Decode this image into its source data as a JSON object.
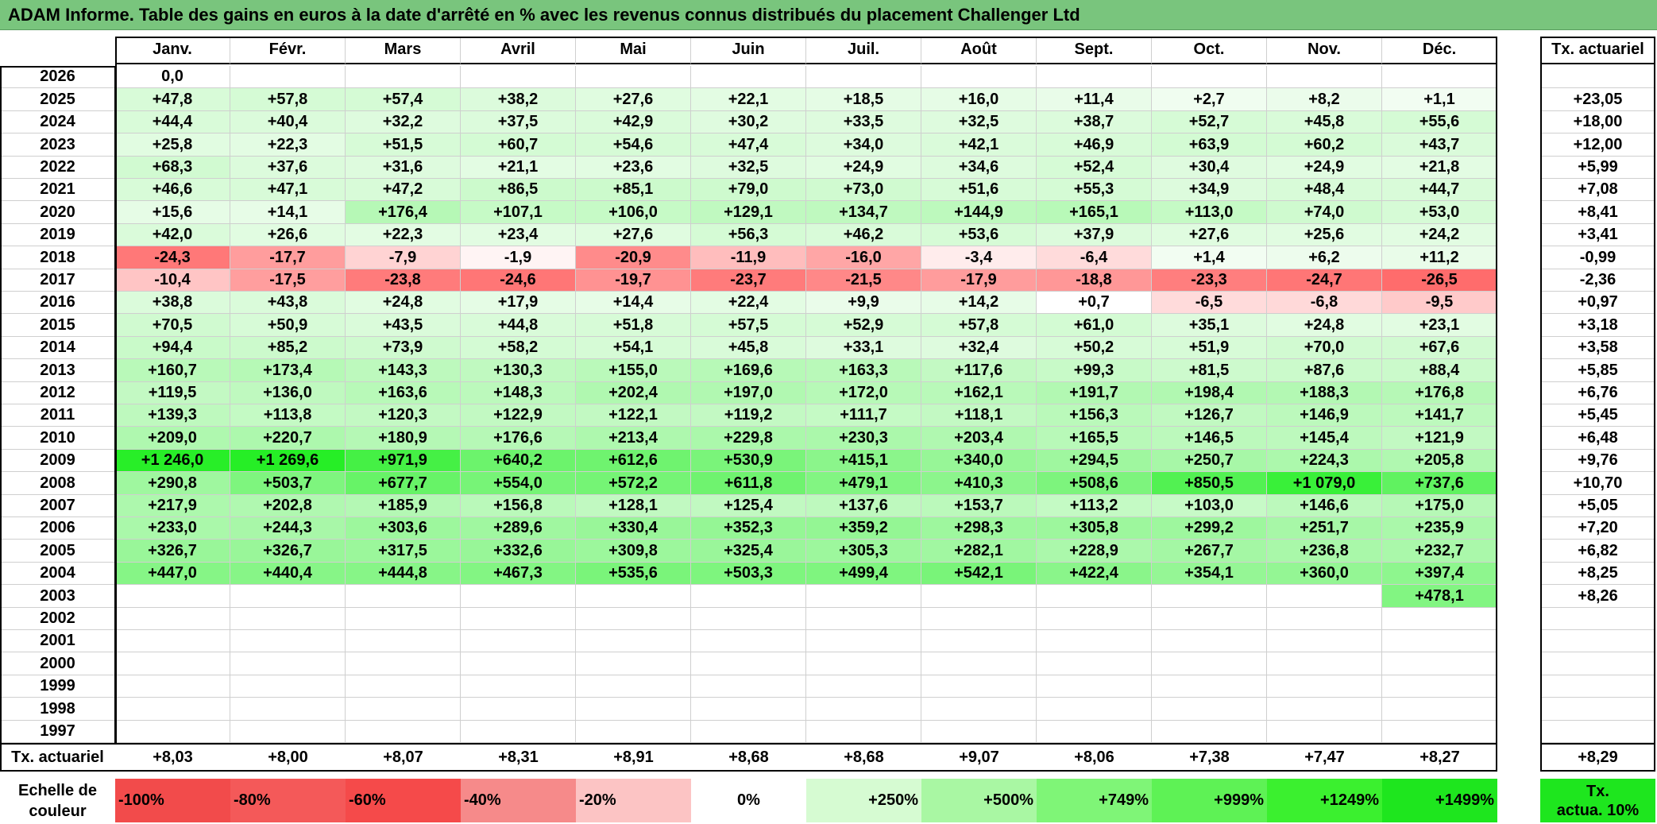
{
  "title": "ADAM Informe. Table des gains en euros à la date d'arrêté en % avec les revenus connus distribués du placement Challenger Ltd",
  "months": [
    "Janv.",
    "Févr.",
    "Mars",
    "Avril",
    "Mai",
    "Juin",
    "Juil.",
    "Août",
    "Sept.",
    "Oct.",
    "Nov.",
    "Déc."
  ],
  "rate_header": "Tx. actuariel",
  "rows": [
    {
      "year": "2026",
      "cells": [
        "0,0",
        "",
        "",
        "",
        "",
        "",
        "",
        "",
        "",
        "",
        "",
        ""
      ],
      "rate": ""
    },
    {
      "year": "2025",
      "cells": [
        "+47,8",
        "+57,8",
        "+57,4",
        "+38,2",
        "+27,6",
        "+22,1",
        "+18,5",
        "+16,0",
        "+11,4",
        "+2,7",
        "+8,2",
        "+1,1"
      ],
      "rate": "+23,05"
    },
    {
      "year": "2024",
      "cells": [
        "+44,4",
        "+40,4",
        "+32,2",
        "+37,5",
        "+42,9",
        "+30,2",
        "+33,5",
        "+32,5",
        "+38,7",
        "+52,7",
        "+45,8",
        "+55,6"
      ],
      "rate": "+18,00"
    },
    {
      "year": "2023",
      "cells": [
        "+25,8",
        "+22,3",
        "+51,5",
        "+60,7",
        "+54,6",
        "+47,4",
        "+34,0",
        "+42,1",
        "+46,9",
        "+63,9",
        "+60,2",
        "+43,7"
      ],
      "rate": "+12,00"
    },
    {
      "year": "2022",
      "cells": [
        "+68,3",
        "+37,6",
        "+31,6",
        "+21,1",
        "+23,6",
        "+32,5",
        "+24,9",
        "+34,6",
        "+52,4",
        "+30,4",
        "+24,9",
        "+21,8"
      ],
      "rate": "+5,99"
    },
    {
      "year": "2021",
      "cells": [
        "+46,6",
        "+47,1",
        "+47,2",
        "+86,5",
        "+85,1",
        "+79,0",
        "+73,0",
        "+51,6",
        "+55,3",
        "+34,9",
        "+48,4",
        "+44,7"
      ],
      "rate": "+7,08"
    },
    {
      "year": "2020",
      "cells": [
        "+15,6",
        "+14,1",
        "+176,4",
        "+107,1",
        "+106,0",
        "+129,1",
        "+134,7",
        "+144,9",
        "+165,1",
        "+113,0",
        "+74,0",
        "+53,0"
      ],
      "rate": "+8,41"
    },
    {
      "year": "2019",
      "cells": [
        "+42,0",
        "+26,6",
        "+22,3",
        "+23,4",
        "+27,6",
        "+56,3",
        "+46,2",
        "+53,6",
        "+37,9",
        "+27,6",
        "+25,6",
        "+24,2"
      ],
      "rate": "+3,41"
    },
    {
      "year": "2018",
      "cells": [
        "-24,3",
        "-17,7",
        "-7,9",
        "-1,9",
        "-20,9",
        "-11,9",
        "-16,0",
        "-3,4",
        "-6,4",
        "+1,4",
        "+6,2",
        "+11,2"
      ],
      "rate": "-0,99"
    },
    {
      "year": "2017",
      "cells": [
        "-10,4",
        "-17,5",
        "-23,8",
        "-24,6",
        "-19,7",
        "-23,7",
        "-21,5",
        "-17,9",
        "-18,8",
        "-23,3",
        "-24,7",
        "-26,5"
      ],
      "rate": "-2,36"
    },
    {
      "year": "2016",
      "cells": [
        "+38,8",
        "+43,8",
        "+24,8",
        "+17,9",
        "+14,4",
        "+22,4",
        "+9,9",
        "+14,2",
        "+0,7",
        "-6,5",
        "-6,8",
        "-9,5"
      ],
      "rate": "+0,97"
    },
    {
      "year": "2015",
      "cells": [
        "+70,5",
        "+50,9",
        "+43,5",
        "+44,8",
        "+51,8",
        "+57,5",
        "+52,9",
        "+57,8",
        "+61,0",
        "+35,1",
        "+24,8",
        "+23,1"
      ],
      "rate": "+3,18"
    },
    {
      "year": "2014",
      "cells": [
        "+94,4",
        "+85,2",
        "+73,9",
        "+58,2",
        "+54,1",
        "+45,8",
        "+33,1",
        "+32,4",
        "+50,2",
        "+51,9",
        "+70,0",
        "+67,6"
      ],
      "rate": "+3,58"
    },
    {
      "year": "2013",
      "cells": [
        "+160,7",
        "+173,4",
        "+143,3",
        "+130,3",
        "+155,0",
        "+169,6",
        "+163,3",
        "+117,6",
        "+99,3",
        "+81,5",
        "+87,6",
        "+88,4"
      ],
      "rate": "+5,85"
    },
    {
      "year": "2012",
      "cells": [
        "+119,5",
        "+136,0",
        "+163,6",
        "+148,3",
        "+202,4",
        "+197,0",
        "+172,0",
        "+162,1",
        "+191,7",
        "+198,4",
        "+188,3",
        "+176,8"
      ],
      "rate": "+6,76"
    },
    {
      "year": "2011",
      "cells": [
        "+139,3",
        "+113,8",
        "+120,3",
        "+122,9",
        "+122,1",
        "+119,2",
        "+111,7",
        "+118,1",
        "+156,3",
        "+126,7",
        "+146,9",
        "+141,7"
      ],
      "rate": "+5,45"
    },
    {
      "year": "2010",
      "cells": [
        "+209,0",
        "+220,7",
        "+180,9",
        "+176,6",
        "+213,4",
        "+229,8",
        "+230,3",
        "+203,4",
        "+165,5",
        "+146,5",
        "+145,4",
        "+121,9"
      ],
      "rate": "+6,48"
    },
    {
      "year": "2009",
      "cells": [
        "+1 246,0",
        "+1 269,6",
        "+971,9",
        "+640,2",
        "+612,6",
        "+530,9",
        "+415,1",
        "+340,0",
        "+294,5",
        "+250,7",
        "+224,3",
        "+205,8"
      ],
      "rate": "+9,76"
    },
    {
      "year": "2008",
      "cells": [
        "+290,8",
        "+503,7",
        "+677,7",
        "+554,0",
        "+572,2",
        "+611,8",
        "+479,1",
        "+410,3",
        "+508,6",
        "+850,5",
        "+1 079,0",
        "+737,6"
      ],
      "rate": "+10,70"
    },
    {
      "year": "2007",
      "cells": [
        "+217,9",
        "+202,8",
        "+185,9",
        "+156,8",
        "+128,1",
        "+125,4",
        "+137,6",
        "+153,7",
        "+113,2",
        "+103,0",
        "+146,6",
        "+175,0"
      ],
      "rate": "+5,05"
    },
    {
      "year": "2006",
      "cells": [
        "+233,0",
        "+244,3",
        "+303,6",
        "+289,6",
        "+330,4",
        "+352,3",
        "+359,2",
        "+298,3",
        "+305,8",
        "+299,2",
        "+251,7",
        "+235,9"
      ],
      "rate": "+7,20"
    },
    {
      "year": "2005",
      "cells": [
        "+326,7",
        "+326,7",
        "+317,5",
        "+332,6",
        "+309,8",
        "+325,4",
        "+305,3",
        "+282,1",
        "+228,9",
        "+267,7",
        "+236,8",
        "+232,7"
      ],
      "rate": "+6,82"
    },
    {
      "year": "2004",
      "cells": [
        "+447,0",
        "+440,4",
        "+444,8",
        "+467,3",
        "+535,6",
        "+503,3",
        "+499,4",
        "+542,1",
        "+422,4",
        "+354,1",
        "+360,0",
        "+397,4"
      ],
      "rate": "+8,25"
    },
    {
      "year": "2003",
      "cells": [
        "",
        "",
        "",
        "",
        "",
        "",
        "",
        "",
        "",
        "",
        "",
        "+478,1"
      ],
      "rate": "+8,26"
    },
    {
      "year": "2002",
      "cells": [
        "",
        "",
        "",
        "",
        "",
        "",
        "",
        "",
        "",
        "",
        "",
        ""
      ],
      "rate": ""
    },
    {
      "year": "2001",
      "cells": [
        "",
        "",
        "",
        "",
        "",
        "",
        "",
        "",
        "",
        "",
        "",
        ""
      ],
      "rate": ""
    },
    {
      "year": "2000",
      "cells": [
        "",
        "",
        "",
        "",
        "",
        "",
        "",
        "",
        "",
        "",
        "",
        ""
      ],
      "rate": ""
    },
    {
      "year": "1999",
      "cells": [
        "",
        "",
        "",
        "",
        "",
        "",
        "",
        "",
        "",
        "",
        "",
        ""
      ],
      "rate": ""
    },
    {
      "year": "1998",
      "cells": [
        "",
        "",
        "",
        "",
        "",
        "",
        "",
        "",
        "",
        "",
        "",
        ""
      ],
      "rate": ""
    },
    {
      "year": "1997",
      "cells": [
        "",
        "",
        "",
        "",
        "",
        "",
        "",
        "",
        "",
        "",
        "",
        ""
      ],
      "rate": ""
    }
  ],
  "footer": {
    "label": "Tx. actuariel",
    "cells": [
      "+8,03",
      "+8,00",
      "+8,07",
      "+8,31",
      "+8,91",
      "+8,68",
      "+8,68",
      "+9,07",
      "+8,06",
      "+7,38",
      "+7,47",
      "+8,27"
    ],
    "rate": "+8,29"
  },
  "scale": {
    "label_line1": "Echelle de",
    "label_line2": "couleur",
    "items": [
      {
        "label": "-100%",
        "color": "#f24b4b"
      },
      {
        "label": "-80%",
        "color": "#f45959"
      },
      {
        "label": "-60%",
        "color": "#f54a4a"
      },
      {
        "label": "-40%",
        "color": "#f68a8a"
      },
      {
        "label": "-20%",
        "color": "#fcc4c4"
      },
      {
        "label": "0%",
        "color": "#ffffff"
      },
      {
        "label": "+250%",
        "color": "#d6fbd2"
      },
      {
        "label": "+500%",
        "color": "#a9f7a3"
      },
      {
        "label": "+749%",
        "color": "#7ff577"
      },
      {
        "label": "+999%",
        "color": "#5ef255"
      },
      {
        "label": "+1249%",
        "color": "#3bf02f"
      },
      {
        "label": "+1499%",
        "color": "#1ee61e"
      }
    ],
    "rate_label_line1": "Tx.",
    "rate_label_line2": "actua. 10%",
    "rate_color": "#1ee61e"
  },
  "colors": {
    "title_bar": "#79c57d",
    "negative_strong": "#f46868",
    "positive_strong": "#2ef22a"
  }
}
